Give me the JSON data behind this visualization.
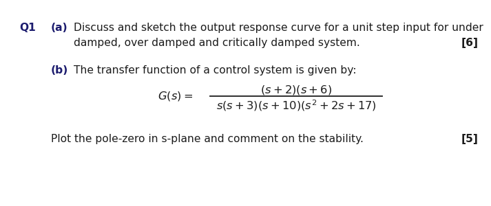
{
  "background_color": "#ffffff",
  "text_color": "#1c1c1c",
  "bold_color": "#1c1c6e",
  "q1_label": "Q1",
  "part_a_bold": "(a)",
  "part_a_text": "Discuss and sketch the output response curve for a unit step input for under",
  "part_a_line2": "damped, over damped and critically damped system.",
  "part_a_mark": "[6]",
  "part_b_bold": "(b)",
  "part_b_text": "The transfer function of a control system is given by:",
  "plot_text": "Plot the pole-zero in s-plane and comment on the stability.",
  "part_b_mark": "[5]",
  "font_size_main": 11.2,
  "font_size_math": 11.8
}
